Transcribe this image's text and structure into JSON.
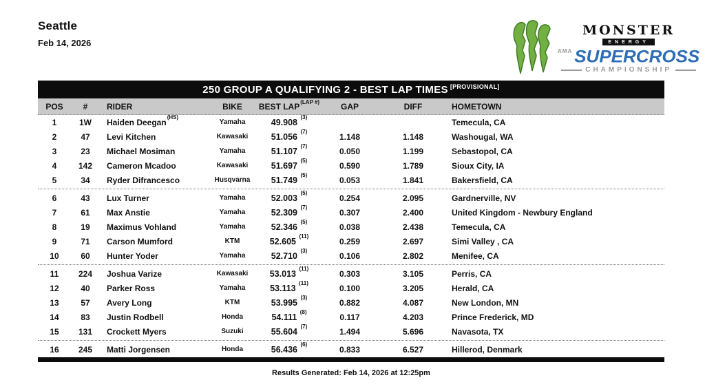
{
  "event": {
    "location": "Seattle",
    "date": "Feb 14, 2026"
  },
  "logo": {
    "brand_line1": "MONSTER",
    "brand_line2": "ENERGY",
    "sanction": "AMA",
    "series": "SUPERCROSS",
    "series_sub": "CHAMPIONSHIP",
    "claw_color": "#72b043",
    "claw_edge_color": "#3f7d22",
    "series_color": "#2e6db6",
    "sub_color": "#9b9b9b"
  },
  "table": {
    "title": "250 GROUP A QUALIFYING 2 - BEST LAP TIMES",
    "title_tag": "[PROVISIONAL]",
    "columns": {
      "pos": "POS",
      "num": "#",
      "rider": "RIDER",
      "bike": "BIKE",
      "best_lap": "BEST LAP",
      "lap_sup": "(LAP #)",
      "gap": "GAP",
      "diff": "DIFF",
      "hometown": "HOMETOWN"
    },
    "group_break_after": [
      5,
      10,
      15
    ],
    "rows": [
      {
        "pos": 1,
        "num": "1W",
        "rider": "Haiden Deegan",
        "rider_tag": "(HS)",
        "bike": "Yamaha",
        "best_lap": "49.908",
        "lap_num": "(3)",
        "gap": "",
        "diff": "",
        "hometown": "Temecula, CA"
      },
      {
        "pos": 2,
        "num": "47",
        "rider": "Levi Kitchen",
        "rider_tag": "",
        "bike": "Kawasaki",
        "best_lap": "51.056",
        "lap_num": "(7)",
        "gap": "1.148",
        "diff": "1.148",
        "hometown": "Washougal, WA"
      },
      {
        "pos": 3,
        "num": "23",
        "rider": "Michael Mosiman",
        "rider_tag": "",
        "bike": "Yamaha",
        "best_lap": "51.107",
        "lap_num": "(7)",
        "gap": "0.050",
        "diff": "1.199",
        "hometown": "Sebastopol, CA"
      },
      {
        "pos": 4,
        "num": "142",
        "rider": "Cameron Mcadoo",
        "rider_tag": "",
        "bike": "Kawasaki",
        "best_lap": "51.697",
        "lap_num": "(5)",
        "gap": "0.590",
        "diff": "1.789",
        "hometown": "Sioux City, IA"
      },
      {
        "pos": 5,
        "num": "34",
        "rider": "Ryder Difrancesco",
        "rider_tag": "",
        "bike": "Husqvarna",
        "best_lap": "51.749",
        "lap_num": "(5)",
        "gap": "0.053",
        "diff": "1.841",
        "hometown": "Bakersfield, CA"
      },
      {
        "pos": 6,
        "num": "43",
        "rider": "Lux Turner",
        "rider_tag": "",
        "bike": "Yamaha",
        "best_lap": "52.003",
        "lap_num": "(5)",
        "gap": "0.254",
        "diff": "2.095",
        "hometown": "Gardnerville, NV"
      },
      {
        "pos": 7,
        "num": "61",
        "rider": "Max Anstie",
        "rider_tag": "",
        "bike": "Yamaha",
        "best_lap": "52.309",
        "lap_num": "(7)",
        "gap": "0.307",
        "diff": "2.400",
        "hometown": "United Kingdom - Newbury England"
      },
      {
        "pos": 8,
        "num": "19",
        "rider": "Maximus Vohland",
        "rider_tag": "",
        "bike": "Yamaha",
        "best_lap": "52.346",
        "lap_num": "(5)",
        "gap": "0.038",
        "diff": "2.438",
        "hometown": "Temecula, CA"
      },
      {
        "pos": 9,
        "num": "71",
        "rider": "Carson Mumford",
        "rider_tag": "",
        "bike": "KTM",
        "best_lap": "52.605",
        "lap_num": "(11)",
        "gap": "0.259",
        "diff": "2.697",
        "hometown": "Simi Valley , CA"
      },
      {
        "pos": 10,
        "num": "60",
        "rider": "Hunter Yoder",
        "rider_tag": "",
        "bike": "Yamaha",
        "best_lap": "52.710",
        "lap_num": "(3)",
        "gap": "0.106",
        "diff": "2.802",
        "hometown": "Menifee, CA"
      },
      {
        "pos": 11,
        "num": "224",
        "rider": "Joshua Varize",
        "rider_tag": "",
        "bike": "Kawasaki",
        "best_lap": "53.013",
        "lap_num": "(11)",
        "gap": "0.303",
        "diff": "3.105",
        "hometown": "Perris, CA"
      },
      {
        "pos": 12,
        "num": "40",
        "rider": "Parker Ross",
        "rider_tag": "",
        "bike": "Yamaha",
        "best_lap": "53.113",
        "lap_num": "(11)",
        "gap": "0.100",
        "diff": "3.205",
        "hometown": "Herald, CA"
      },
      {
        "pos": 13,
        "num": "57",
        "rider": "Avery Long",
        "rider_tag": "",
        "bike": "KTM",
        "best_lap": "53.995",
        "lap_num": "(3)",
        "gap": "0.882",
        "diff": "4.087",
        "hometown": "New London, MN"
      },
      {
        "pos": 14,
        "num": "83",
        "rider": "Justin Rodbell",
        "rider_tag": "",
        "bike": "Honda",
        "best_lap": "54.111",
        "lap_num": "(8)",
        "gap": "0.117",
        "diff": "4.203",
        "hometown": "Prince Frederick, MD"
      },
      {
        "pos": 15,
        "num": "131",
        "rider": "Crockett Myers",
        "rider_tag": "",
        "bike": "Suzuki",
        "best_lap": "55.604",
        "lap_num": "(7)",
        "gap": "1.494",
        "diff": "5.696",
        "hometown": "Navasota, TX"
      },
      {
        "pos": 16,
        "num": "245",
        "rider": "Matti Jorgensen",
        "rider_tag": "",
        "bike": "Honda",
        "best_lap": "56.436",
        "lap_num": "(6)",
        "gap": "0.833",
        "diff": "6.527",
        "hometown": "Hillerod, Denmark"
      }
    ]
  },
  "footer": {
    "text": "Results Generated: Feb 14, 2026 at 12:25pm"
  }
}
